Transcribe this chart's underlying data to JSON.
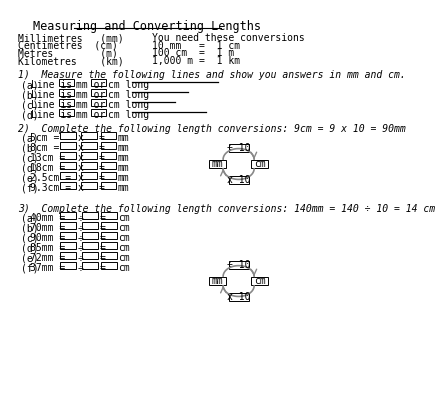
{
  "title": "Measuring and Converting Lengths",
  "units_left": [
    "Millimetres   (mm)",
    "Centimetres  (cm)",
    "Metres        (m)",
    "Kilometres    (km)"
  ],
  "conversions_title": "You need these conversions",
  "conversions": [
    "10 mm   =  1 cm",
    "100 cm  =  1 m",
    "1,000 m =  1 km"
  ],
  "section1_title": "1)  Measure the following lines and show you answers in mm and cm.",
  "section1_items": [
    "(a)",
    "(b)",
    "(c)",
    "(d)"
  ],
  "section1_line_lengths": [
    110,
    72,
    55,
    95
  ],
  "section2_title": "2)  Complete the following length conversions: 9cm = 9 x 10 = 90mm",
  "section2_items": [
    {
      "label": "(a)",
      "value": "5cm ="
    },
    {
      "label": "(b)",
      "value": "8cm ="
    },
    {
      "label": "(c)",
      "value": "13cm ="
    },
    {
      "label": "(d)",
      "value": "18cm ="
    },
    {
      "label": "(e)",
      "value": "2.5cm ="
    },
    {
      "label": "(f)",
      "value": "9.3cm ="
    }
  ],
  "section2_op": "x",
  "section2_unit": "mm",
  "section3_title": "3)  Complete the following length conversions: 140mm = 140 ÷ 10 = 14 cm",
  "section3_items": [
    {
      "label": "(a)",
      "value": "40mm ="
    },
    {
      "label": "(b)",
      "value": "70mm ="
    },
    {
      "label": "(c)",
      "value": "90mm ="
    },
    {
      "label": "(d)",
      "value": "85mm ="
    },
    {
      "label": "(e)",
      "value": "72mm ="
    },
    {
      "label": "(f)",
      "value": "37mm ="
    }
  ],
  "section3_op": "÷",
  "section3_unit": "cm",
  "bg_color": "#ffffff",
  "text_color": "#000000",
  "box_color": "#000000",
  "font_size": 7.0,
  "title_font_size": 8.5
}
